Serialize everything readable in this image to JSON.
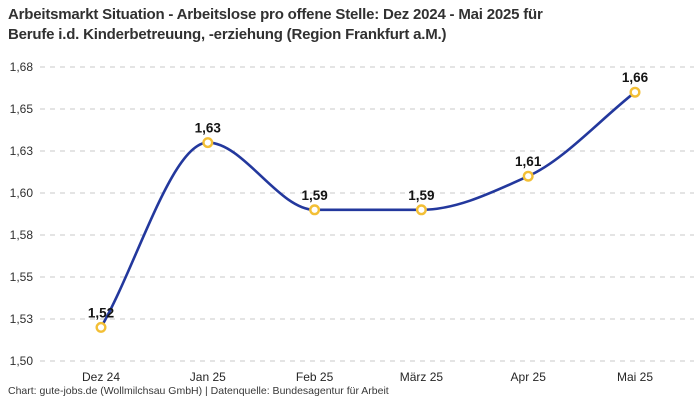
{
  "title": {
    "line1": "Arbeitsmarkt Situation - Arbeitslose pro offene Stelle: Dez 2024 - Mai 2025 für",
    "line2": "Berufe i.d. Kinderbetreuung, -erziehung (Region Frankfurt a.M.)"
  },
  "caption": "Chart: gute-jobs.de (Wollmilchsau GmbH) | Datenquelle: Bundesagentur für Arbeit",
  "chart_data": {
    "type": "line",
    "title": "Arbeitsmarkt Situation - Arbeitslose pro offene Stelle: Dez 2024 - Mai 2025 für Berufe i.d. Kinderbetreuung, -erziehung (Region Frankfurt a.M.)",
    "categories": [
      "Dez 24",
      "Jan 25",
      "Feb 25",
      "März 25",
      "Apr 25",
      "Mai 25"
    ],
    "values": [
      1.52,
      1.63,
      1.59,
      1.59,
      1.61,
      1.66
    ],
    "point_labels": [
      "1,52",
      "1,63",
      "1,59",
      "1,59",
      "1,61",
      "1,66"
    ],
    "ylim": [
      1.5,
      1.675
    ],
    "y_ticks": [
      1.5,
      1.525,
      1.55,
      1.575,
      1.6,
      1.625,
      1.65,
      1.675
    ],
    "y_tick_labels": [
      "1,50",
      "1,53",
      "1,55",
      "1,58",
      "1,60",
      "1,63",
      "1,65",
      "1,68"
    ],
    "xlabel": "",
    "ylabel": "",
    "grid": "horizontal-dashed",
    "legend": "none",
    "curve": "smooth-monotone",
    "colors": {
      "line": "#23389d",
      "marker_ring": "#f3bf35",
      "marker_fill": "#ffffff",
      "gridline": "#c8c8c8",
      "text": "#2f2f2f"
    }
  }
}
